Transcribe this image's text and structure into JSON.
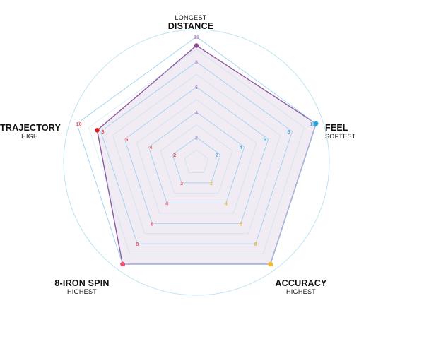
{
  "chart_data": {
    "type": "radar",
    "axes": [
      {
        "name": "DISTANCE",
        "qualifier": "LONGEST",
        "marker_color": "#8a4a8f"
      },
      {
        "name": "FEEL",
        "qualifier": "SOFTEST",
        "marker_color": "#1aa3e0"
      },
      {
        "name": "ACCURACY",
        "qualifier": "HIGHEST",
        "marker_color": "#f5b82e"
      },
      {
        "name": "8-IRON SPIN",
        "qualifier": "HIGHEST",
        "marker_color": "#f0506e"
      },
      {
        "name": "TRAJECTORY",
        "qualifier": "HIGH",
        "marker_color": "#e0141e"
      }
    ],
    "range": [
      0,
      10
    ],
    "ticks": [
      2,
      4,
      6,
      8,
      10
    ],
    "tick_label_colors": [
      "#b48cc8",
      "#4fb0e0",
      "#f5b82e",
      "#f0506e",
      "#f04a4a"
    ],
    "series": [
      {
        "values": [
          9.3,
          10,
          10,
          10,
          8.3
        ],
        "fill": "#f1ebf4",
        "stroke": "#8a5aa0"
      }
    ],
    "grid_color": "#9fd3ef",
    "outer_circle_color": "#bfe3f3"
  }
}
